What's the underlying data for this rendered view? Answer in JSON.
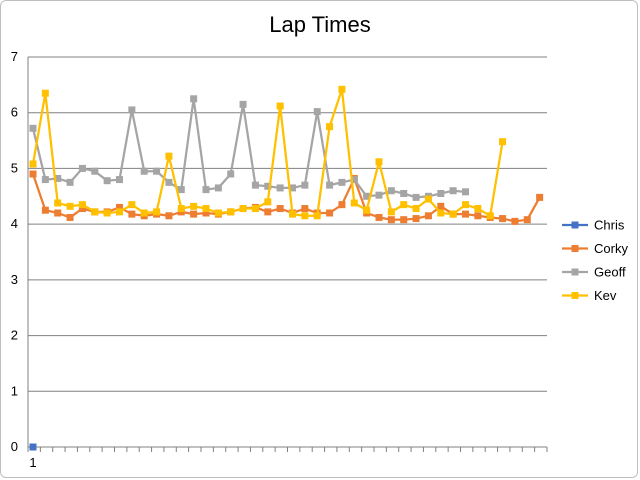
{
  "chart_data": {
    "type": "line",
    "title": "Lap Times",
    "xlabel": "",
    "ylabel": "",
    "ylim": [
      0,
      7
    ],
    "y_ticks": [
      0,
      1,
      2,
      3,
      4,
      5,
      6,
      7
    ],
    "x_tick_labels": [
      "1"
    ],
    "grid": "horizontal",
    "legend_position": "right",
    "series": [
      {
        "name": "Chris",
        "color": "#4472C4",
        "values": [
          0
        ]
      },
      {
        "name": "Corky",
        "color": "#ED7D31",
        "values": [
          4.9,
          4.25,
          4.2,
          4.12,
          4.28,
          4.22,
          4.22,
          4.3,
          4.18,
          4.15,
          4.18,
          4.15,
          4.22,
          4.18,
          4.2,
          4.18,
          4.22,
          4.28,
          4.3,
          4.22,
          4.28,
          4.2,
          4.28,
          4.2,
          4.2,
          4.35,
          4.82,
          4.2,
          4.12,
          4.08,
          4.08,
          4.1,
          4.15,
          4.32,
          4.18,
          4.18,
          4.15,
          4.12,
          4.1,
          4.05,
          4.08,
          4.48
        ]
      },
      {
        "name": "Geoff",
        "color": "#A5A5A5",
        "values": [
          5.72,
          4.8,
          4.82,
          4.75,
          5.0,
          4.95,
          4.78,
          4.8,
          6.05,
          4.95,
          4.95,
          4.75,
          4.62,
          6.25,
          4.62,
          4.65,
          4.9,
          6.15,
          4.7,
          4.68,
          4.65,
          4.65,
          4.7,
          6.02,
          4.7,
          4.75,
          4.8,
          4.5,
          4.52,
          4.6,
          4.55,
          4.48,
          4.5,
          4.55,
          4.6,
          4.58
        ]
      },
      {
        "name": "Kev",
        "color": "#FFC000",
        "values": [
          5.08,
          6.35,
          4.38,
          4.32,
          4.35,
          4.22,
          4.2,
          4.22,
          4.35,
          4.2,
          4.22,
          5.22,
          4.28,
          4.32,
          4.28,
          4.2,
          4.22,
          4.28,
          4.28,
          4.4,
          6.12,
          4.18,
          4.15,
          4.15,
          5.75,
          6.42,
          4.38,
          4.25,
          5.12,
          4.22,
          4.35,
          4.28,
          4.45,
          4.2,
          4.18,
          4.35,
          4.28,
          4.15,
          5.48
        ]
      }
    ]
  }
}
